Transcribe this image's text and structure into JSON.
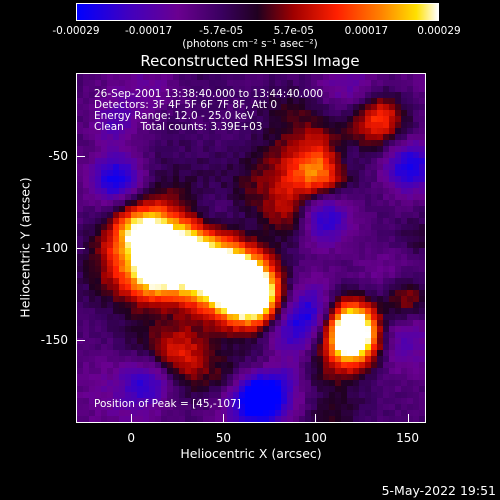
{
  "colorbar": {
    "ticks": [
      "-0.00029",
      "-0.00017",
      "-5.7e-05",
      "5.7e-05",
      "0.00017",
      "0.00029"
    ],
    "units": "(photons cm⁻² s⁻¹ asec⁻²)"
  },
  "title": "Reconstructed RHESSI Image",
  "annotation": {
    "time": "26-Sep-2001 13:38:40.000 to 13:44:40.000",
    "detectors": "Detectors: 3F 4F 5F 6F 7F 8F, Att 0",
    "energy": "Energy Range: 12.0 - 25.0 keV",
    "clean": "Clean     Total counts: 3.39E+03",
    "peak": "Position of Peak = [45,-107]"
  },
  "axes": {
    "xlabel": "Heliocentric X (arcsec)",
    "ylabel": "Heliocentric Y (arcsec)",
    "xticks": [
      "0",
      "50",
      "100",
      "150"
    ],
    "yticks": [
      "-50",
      "-100",
      "-150"
    ],
    "xlim": [
      -30,
      160
    ],
    "ylim": [
      -195,
      -5
    ]
  },
  "timestamp": "5-May-2022 19:51",
  "colors": {
    "background": "#000000",
    "foreground": "#ffffff"
  }
}
